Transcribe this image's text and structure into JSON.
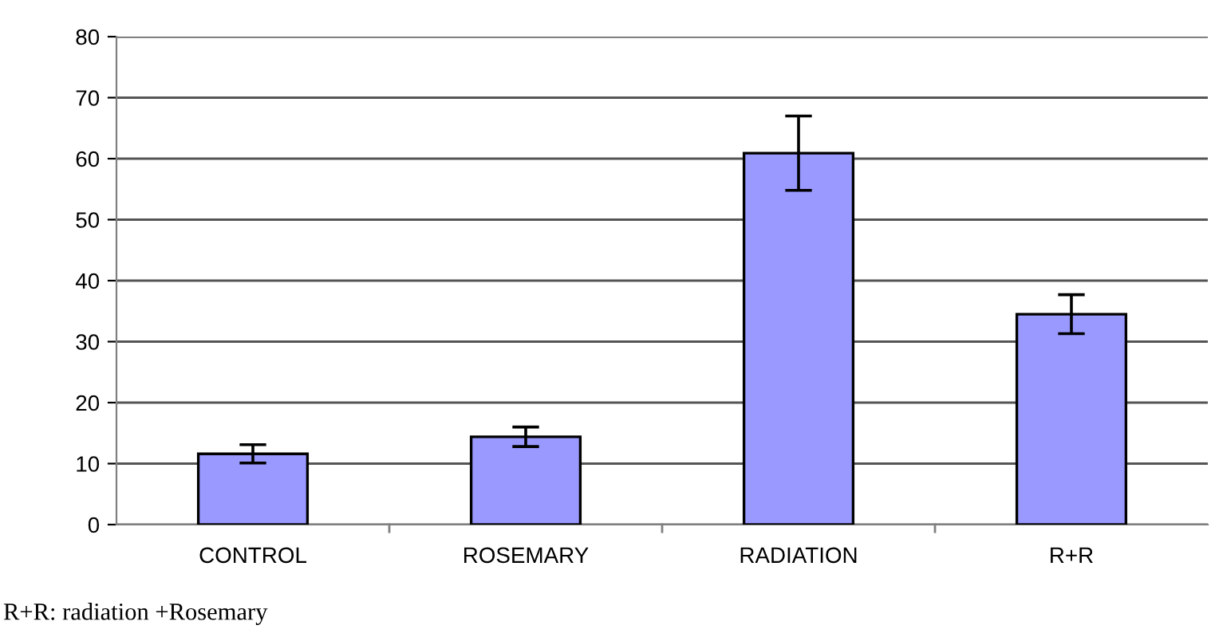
{
  "chart_data": {
    "type": "bar",
    "categories": [
      "CONTROL",
      "ROSEMARY",
      "RADIATION",
      "R+R"
    ],
    "values": [
      11.6,
      14.4,
      60.9,
      34.5
    ],
    "errors": [
      1.5,
      1.6,
      6.1,
      3.2
    ],
    "color": "#9999ff",
    "ylim": [
      0,
      80
    ],
    "yticks": [
      0,
      10,
      20,
      30,
      40,
      50,
      60,
      70,
      80
    ],
    "grid": "y",
    "annotations": [
      "R+R: radiation +Rosemary"
    ]
  }
}
